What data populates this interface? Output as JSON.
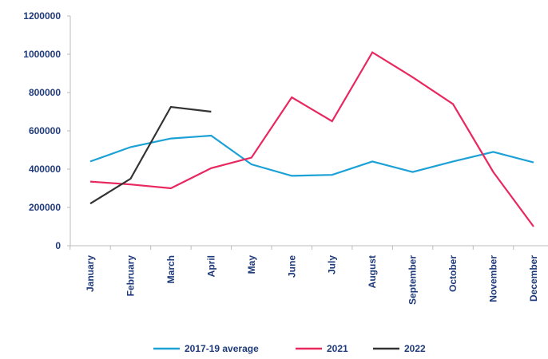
{
  "chart_data": {
    "type": "line",
    "categories": [
      "January",
      "February",
      "March",
      "April",
      "May",
      "June",
      "July",
      "August",
      "September",
      "October",
      "November",
      "December"
    ],
    "series": [
      {
        "name": "2017-19 average",
        "color": "#1ba1d6",
        "values": [
          440000,
          515000,
          560000,
          575000,
          425000,
          365000,
          370000,
          440000,
          385000,
          440000,
          490000,
          435000
        ]
      },
      {
        "name": "2021",
        "color": "#e8285f",
        "values": [
          335000,
          320000,
          300000,
          405000,
          460000,
          775000,
          650000,
          1010000,
          880000,
          740000,
          385000,
          100000
        ]
      },
      {
        "name": "2022",
        "color": "#333333",
        "values": [
          220000,
          350000,
          725000,
          700000,
          null,
          null,
          null,
          null,
          null,
          null,
          null,
          null
        ]
      }
    ],
    "ylim": [
      0,
      1200000
    ],
    "yticks": [
      0,
      200000,
      400000,
      600000,
      800000,
      1000000,
      1200000
    ],
    "legend": "bottom"
  }
}
